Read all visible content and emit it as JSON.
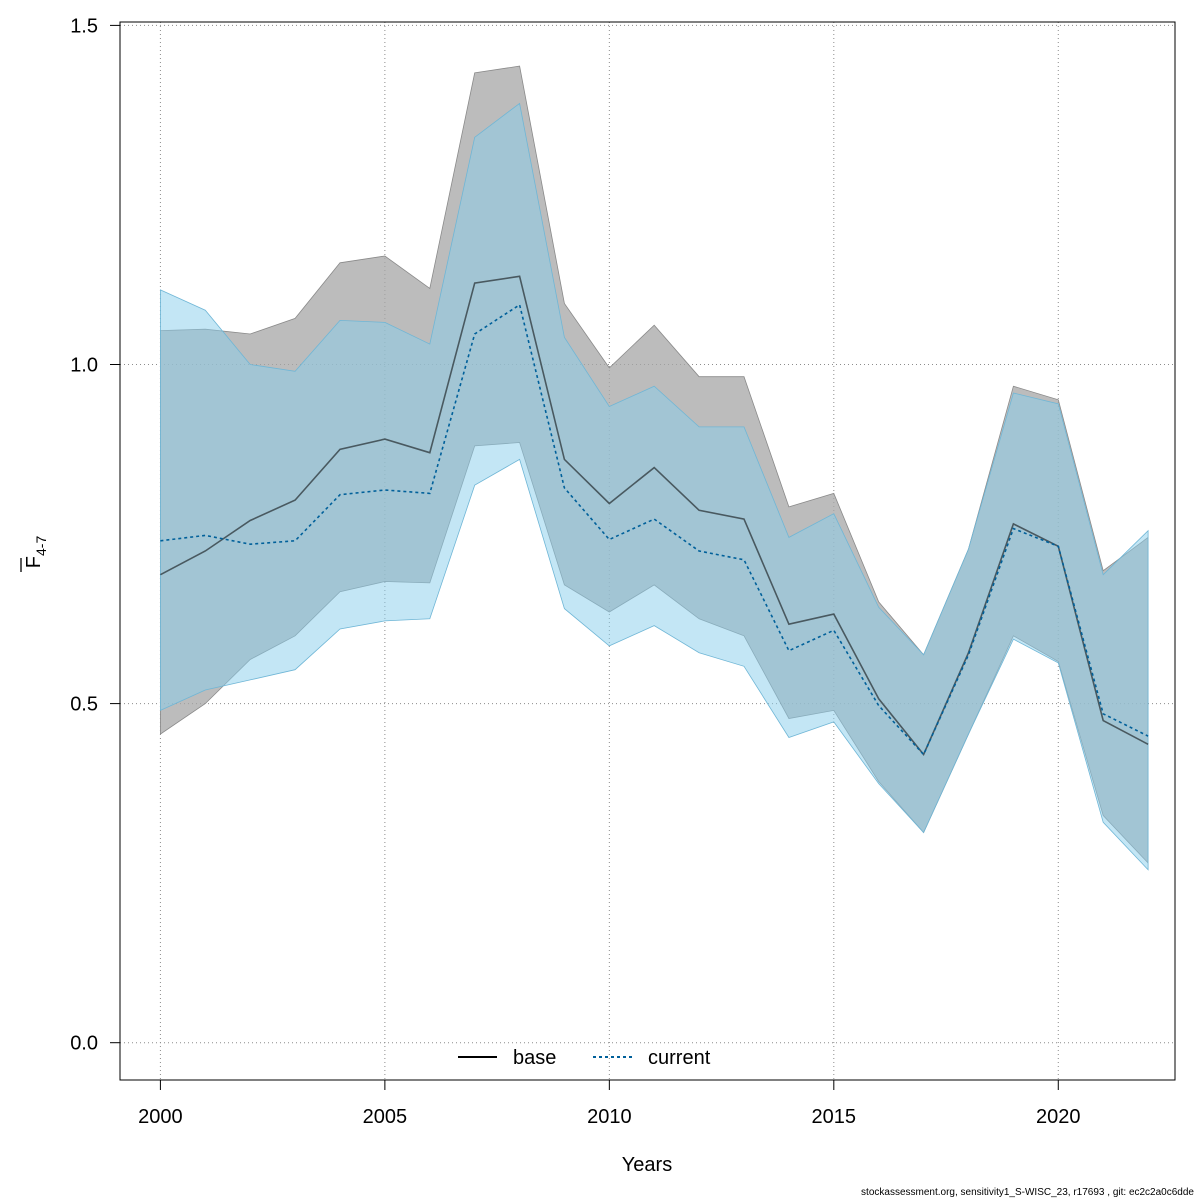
{
  "footer": "stockassessment.org, sensitivity1_S-WISC_23, r17693 , git: ec2c2a0c6dde",
  "chart_data": {
    "type": "line",
    "title": "",
    "xlabel": "Years",
    "ylabel_main": "F",
    "ylabel_sub": "4-7",
    "xlim": [
      1999.1,
      2022.6
    ],
    "ylim": [
      -0.055,
      1.505
    ],
    "xticks": [
      2000,
      2005,
      2010,
      2015,
      2020
    ],
    "yticks": [
      0.0,
      0.5,
      1.0,
      1.5
    ],
    "ytick_labels": [
      "0.0",
      "0.5",
      "1.0",
      "1.5"
    ],
    "grid": true,
    "legend_position": "bottom-center",
    "x": [
      2000,
      2001,
      2002,
      2003,
      2004,
      2005,
      2006,
      2007,
      2008,
      2009,
      2010,
      2011,
      2012,
      2013,
      2014,
      2015,
      2016,
      2017,
      2018,
      2019,
      2020,
      2021,
      2022
    ],
    "series": [
      {
        "name": "base",
        "line_style": "solid",
        "line_color": "#000000",
        "band_color": "#a6a6a6",
        "values": [
          0.69,
          0.725,
          0.77,
          0.8,
          0.875,
          0.89,
          0.87,
          1.12,
          1.13,
          0.86,
          0.795,
          0.848,
          0.785,
          0.772,
          0.617,
          0.632,
          0.507,
          0.425,
          0.575,
          0.765,
          0.732,
          0.475,
          0.44
        ],
        "lower": [
          0.455,
          0.5,
          0.565,
          0.6,
          0.665,
          0.68,
          0.678,
          0.88,
          0.885,
          0.675,
          0.635,
          0.675,
          0.625,
          0.6,
          0.478,
          0.49,
          0.385,
          0.31,
          0.455,
          0.6,
          0.562,
          0.335,
          0.265
        ],
        "upper": [
          1.05,
          1.052,
          1.045,
          1.068,
          1.15,
          1.16,
          1.112,
          1.43,
          1.44,
          1.09,
          0.995,
          1.058,
          0.982,
          0.982,
          0.79,
          0.81,
          0.65,
          0.572,
          0.728,
          0.968,
          0.948,
          0.696,
          0.745
        ]
      },
      {
        "name": "current",
        "line_style": "dotted",
        "line_color": "#00609a",
        "band_color": "#87ceeb",
        "values": [
          0.74,
          0.748,
          0.735,
          0.74,
          0.808,
          0.815,
          0.81,
          1.045,
          1.088,
          0.818,
          0.742,
          0.772,
          0.725,
          0.712,
          0.578,
          0.608,
          0.497,
          0.425,
          0.572,
          0.758,
          0.732,
          0.485,
          0.452
        ],
        "lower": [
          0.49,
          0.52,
          0.535,
          0.55,
          0.61,
          0.622,
          0.625,
          0.822,
          0.86,
          0.64,
          0.585,
          0.615,
          0.575,
          0.555,
          0.45,
          0.473,
          0.382,
          0.31,
          0.455,
          0.595,
          0.56,
          0.325,
          0.255
        ],
        "upper": [
          1.11,
          1.08,
          1.0,
          0.99,
          1.065,
          1.062,
          1.03,
          1.335,
          1.385,
          1.04,
          0.938,
          0.968,
          0.908,
          0.908,
          0.745,
          0.78,
          0.642,
          0.572,
          0.728,
          0.958,
          0.942,
          0.69,
          0.755
        ]
      }
    ]
  }
}
